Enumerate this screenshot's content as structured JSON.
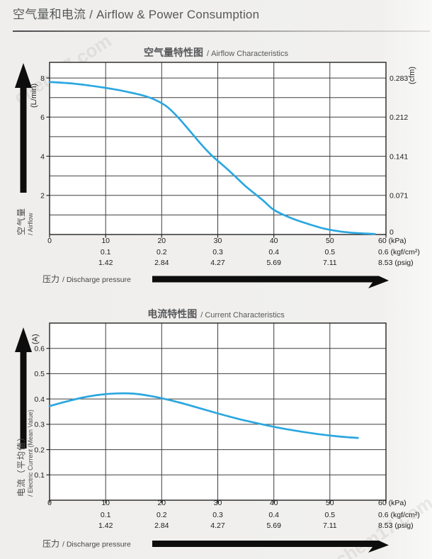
{
  "header": {
    "title": "空气量和电流 / Airflow & Power Consumption"
  },
  "watermark": {
    "text": "chem17.com"
  },
  "pressure_axis": {
    "arrow_label_zh": "压力",
    "arrow_label_en": "/ Discharge pressure",
    "tick_values": [
      0,
      10,
      20,
      30,
      40,
      50,
      60
    ],
    "label_rows": [
      [
        "0",
        "10",
        "20",
        "30",
        "40",
        "50",
        "60 (kPa)"
      ],
      [
        "",
        "0.1",
        "0.2",
        "0.3",
        "0.4",
        "0.5",
        "0.6 (kgf/cm²)"
      ],
      [
        "",
        "1.42",
        "2.84",
        "4.27",
        "5.69",
        "7.11",
        "8.53 (psig)"
      ]
    ]
  },
  "chart_data": [
    {
      "type": "line",
      "title_zh": "空气量特性图",
      "title_en": "/ Airflow Characteristics",
      "xlabel": "压力 / Discharge pressure",
      "xlim": [
        0,
        60
      ],
      "grid": "on",
      "y_left": {
        "unit": "(L/min)",
        "axis_label_zh": "空气量",
        "axis_label_en": "/ Airflow",
        "min": 0,
        "max": 8.8,
        "grid_values": [
          1,
          2,
          3,
          4,
          5,
          6,
          7,
          8
        ],
        "tick_labels": [
          [
            8,
            "8"
          ],
          [
            6,
            "6"
          ],
          [
            4,
            "4"
          ],
          [
            2,
            "2"
          ]
        ]
      },
      "y_right": {
        "unit": "(cfm)",
        "tick_labels": [
          [
            8,
            "0.283"
          ],
          [
            6,
            "0.212"
          ],
          [
            4,
            "0.141"
          ],
          [
            2,
            "0.071"
          ],
          [
            0,
            "0"
          ]
        ]
      },
      "series": [
        {
          "name": "airflow",
          "color": "#2aa7e0",
          "points": [
            [
              0,
              7.8
            ],
            [
              4,
              7.72
            ],
            [
              8,
              7.58
            ],
            [
              12,
              7.4
            ],
            [
              15,
              7.22
            ],
            [
              17,
              7.08
            ],
            [
              19,
              6.86
            ],
            [
              21,
              6.52
            ],
            [
              23,
              5.96
            ],
            [
              25,
              5.3
            ],
            [
              27,
              4.62
            ],
            [
              29,
              4.02
            ],
            [
              31,
              3.52
            ],
            [
              33,
              3.0
            ],
            [
              35,
              2.46
            ],
            [
              38,
              1.76
            ],
            [
              40,
              1.26
            ],
            [
              43,
              0.85
            ],
            [
              46,
              0.55
            ],
            [
              49,
              0.3
            ],
            [
              52,
              0.15
            ],
            [
              55,
              0.07
            ],
            [
              58,
              0.03
            ]
          ]
        }
      ]
    },
    {
      "type": "line",
      "title_zh": "电流特性图",
      "title_en": "/ Current Characteristics",
      "xlabel": "压力 / Discharge pressure",
      "xlim": [
        0,
        60
      ],
      "grid": "on",
      "y_left": {
        "unit": "(A)",
        "axis_label_zh": "电流（平均值）",
        "axis_label_en": "/ Electric Current (Mean Value)",
        "min": 0,
        "max": 0.7,
        "grid_values": [
          0.1,
          0.2,
          0.3,
          0.4,
          0.5,
          0.6
        ],
        "tick_labels": [
          [
            0.6,
            "0.6"
          ],
          [
            0.5,
            "0.5"
          ],
          [
            0.4,
            "0.4"
          ],
          [
            0.3,
            "0.3"
          ],
          [
            0.2,
            "0.2"
          ],
          [
            0.1,
            "0.1"
          ]
        ]
      },
      "y_right": null,
      "series": [
        {
          "name": "current",
          "color": "#2aa7e0",
          "points": [
            [
              0,
              0.372
            ],
            [
              3,
              0.39
            ],
            [
              6,
              0.406
            ],
            [
              9,
              0.417
            ],
            [
              12,
              0.422
            ],
            [
              15,
              0.421
            ],
            [
              18,
              0.412
            ],
            [
              21,
              0.398
            ],
            [
              24,
              0.381
            ],
            [
              27,
              0.362
            ],
            [
              30,
              0.343
            ],
            [
              33,
              0.325
            ],
            [
              36,
              0.309
            ],
            [
              40,
              0.29
            ],
            [
              44,
              0.274
            ],
            [
              48,
              0.261
            ],
            [
              52,
              0.251
            ],
            [
              55,
              0.246
            ]
          ]
        }
      ]
    }
  ]
}
